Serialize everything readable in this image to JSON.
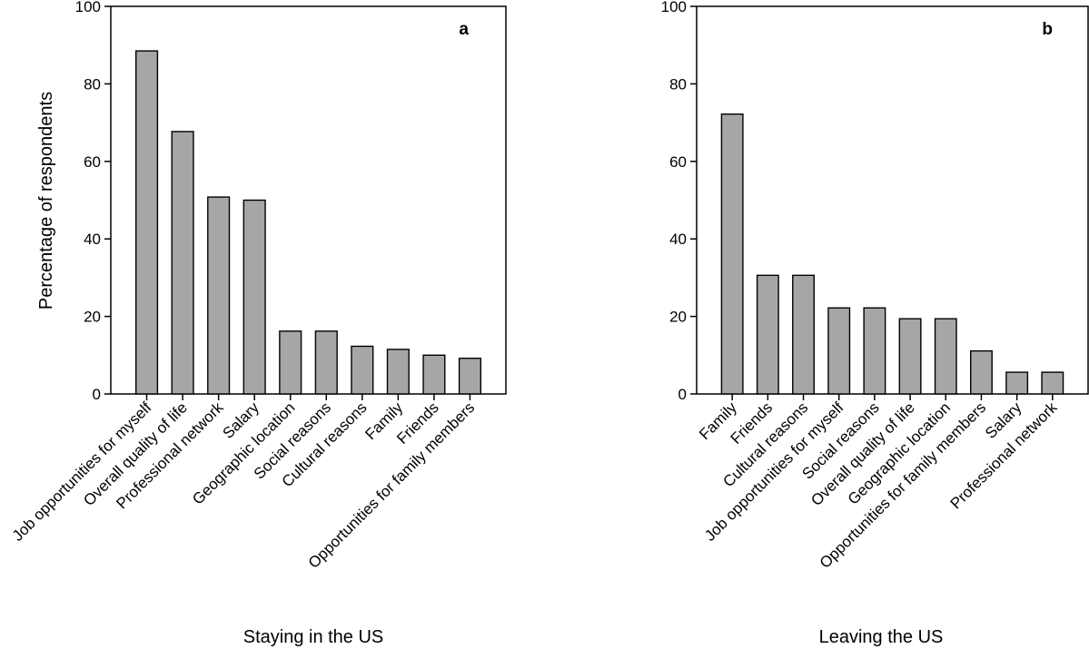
{
  "chart_data": [
    {
      "type": "bar",
      "panel": "a",
      "title": "",
      "xlabel": "Staying in the US",
      "ylabel": "Percentage of respondents",
      "ylim": [
        0,
        100
      ],
      "yticks": [
        0,
        20,
        40,
        60,
        80,
        100
      ],
      "categories": [
        "Job opportunities for myself",
        "Overall quality of life",
        "Professional network",
        "Salary",
        "Geographic location",
        "Social reasons",
        "Cultural reasons",
        "Family",
        "Friends",
        "Opportunities for family members"
      ],
      "values": [
        88.5,
        67.7,
        50.8,
        50.0,
        16.2,
        16.2,
        12.3,
        11.5,
        10.0,
        9.2
      ],
      "bar_color": "#a6a6a6",
      "grid": false
    },
    {
      "type": "bar",
      "panel": "b",
      "title": "",
      "xlabel": "Leaving the US",
      "ylabel": "",
      "ylim": [
        0,
        100
      ],
      "yticks": [
        0,
        20,
        40,
        60,
        80,
        100
      ],
      "categories": [
        "Family",
        "Friends",
        "Cultural reasons",
        "Job opportunities for myself",
        "Social reasons",
        "Overall quality of life",
        "Geographic location",
        "Opportunities for family members",
        "Salary",
        "Professional network"
      ],
      "values": [
        72.2,
        30.6,
        30.6,
        22.2,
        22.2,
        19.4,
        19.4,
        11.1,
        5.6,
        5.6
      ],
      "bar_color": "#a6a6a6",
      "grid": false
    }
  ]
}
